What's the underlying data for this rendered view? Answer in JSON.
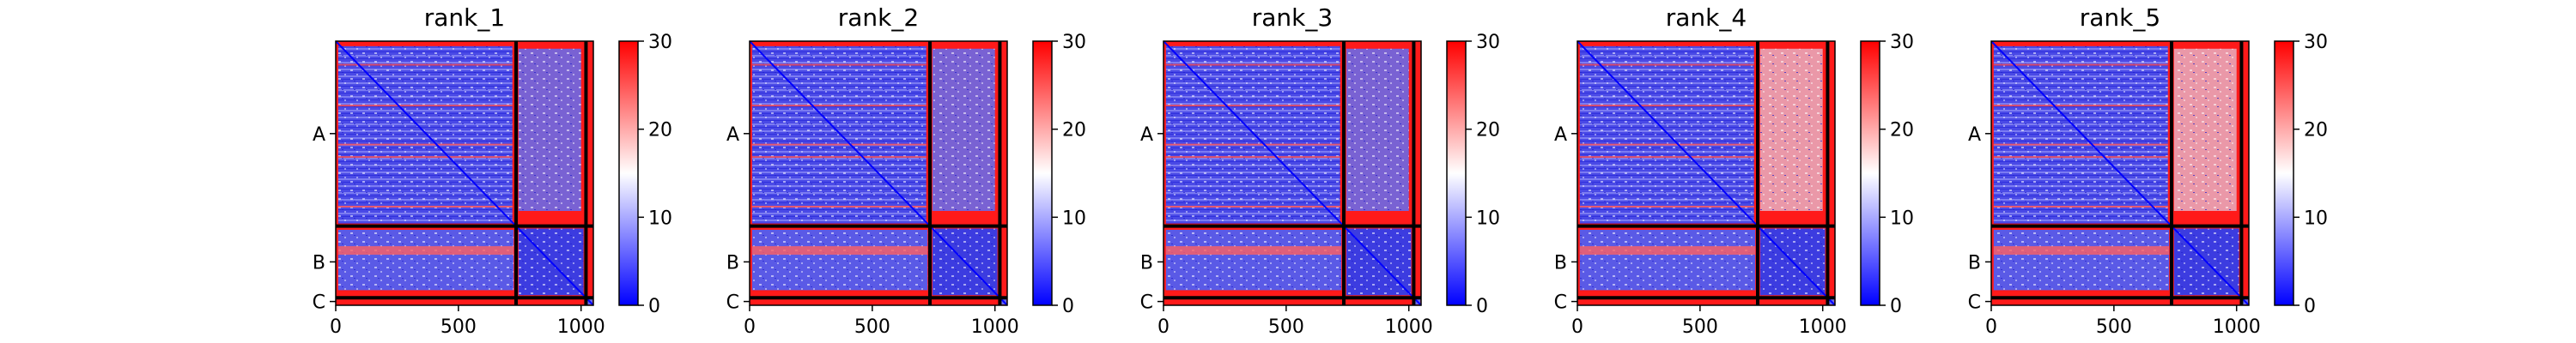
{
  "chart_data": {
    "type": "heatmap",
    "description_free": true,
    "panels": [
      {
        "title": "rank_1"
      },
      {
        "title": "rank_2"
      },
      {
        "title": "rank_3"
      },
      {
        "title": "rank_4"
      },
      {
        "title": "rank_5"
      }
    ],
    "x_range": [
      0,
      1050
    ],
    "x_ticks": [
      {
        "value": 0,
        "label": "0"
      },
      {
        "value": 500,
        "label": "500"
      },
      {
        "value": 1000,
        "label": "1000"
      }
    ],
    "chains": [
      {
        "label": "A",
        "start": 0,
        "end": 735
      },
      {
        "label": "B",
        "start": 735,
        "end": 1020
      },
      {
        "label": "C",
        "start": 1020,
        "end": 1050
      }
    ],
    "colorbar": {
      "range": [
        0,
        30
      ],
      "ticks": [
        {
          "value": 0,
          "label": "0"
        },
        {
          "value": 10,
          "label": "10"
        },
        {
          "value": 20,
          "label": "20"
        },
        {
          "value": 30,
          "label": "30"
        }
      ],
      "colormap": "bwr",
      "colors": [
        "#0000ff",
        "#ffffff",
        "#ff0000"
      ]
    },
    "chain_boundary_color": "#000000",
    "diagonal_color": "#0000ff"
  }
}
